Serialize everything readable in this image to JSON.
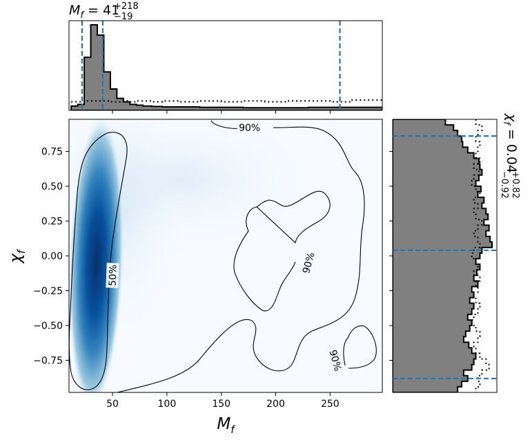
{
  "chart_data": [
    {
      "type": "heatmap",
      "xlabel_var": "M",
      "xlabel_sub": "f",
      "ylabel_var": "χ",
      "ylabel_sub": "f",
      "xlim": [
        10,
        298
      ],
      "ylim": [
        -0.98,
        0.98
      ],
      "x_ticks": [
        50,
        100,
        150,
        200,
        250
      ],
      "y_ticks": [
        -0.75,
        -0.5,
        -0.25,
        0.0,
        0.25,
        0.5,
        0.75
      ],
      "y_tick_labels": [
        "−0.75",
        "−0.50",
        "−0.25",
        "0.00",
        "0.25",
        "0.50",
        "0.75"
      ],
      "density_peak": {
        "x": 35,
        "y": 0.25
      },
      "contours": [
        {
          "label": "50%",
          "label_at": [
            50,
            -0.14
          ]
        },
        {
          "label": "90%",
          "label_at": [
            176,
            0.92
          ]
        },
        {
          "label": "90%",
          "label_at": [
            230,
            -0.05
          ]
        },
        {
          "label": "90%",
          "label_at": [
            255,
            -0.75
          ]
        }
      ],
      "colors": {
        "density": "#08306b",
        "contour": "#000000"
      }
    },
    {
      "type": "histogram",
      "variable": "M_f",
      "title_main": "M",
      "title_sub": "f",
      "title_value": " = 41",
      "title_plus": "+218",
      "title_minus": "−19",
      "median": 41,
      "interval": [
        22,
        259
      ],
      "bins_x": [
        12,
        18,
        24,
        30,
        36,
        42,
        48,
        54,
        60,
        66,
        72,
        78,
        86,
        96,
        110,
        130,
        150,
        170,
        190,
        210,
        230,
        250,
        270,
        298
      ],
      "posterior_density": [
        0.05,
        0.07,
        0.62,
        1.0,
        0.88,
        0.45,
        0.25,
        0.14,
        0.1,
        0.07,
        0.06,
        0.05,
        0.045,
        0.04,
        0.04,
        0.035,
        0.035,
        0.03,
        0.03,
        0.03,
        0.035,
        0.035,
        0.035
      ],
      "prior_density": [
        0.1,
        0.1,
        0.11,
        0.11,
        0.11,
        0.11,
        0.1,
        0.1,
        0.11,
        0.1,
        0.11,
        0.11,
        0.1,
        0.11,
        0.1,
        0.11,
        0.1,
        0.11,
        0.1,
        0.11,
        0.11,
        0.1,
        0.12
      ],
      "colors": {
        "fill": "#808080",
        "edge": "#000000",
        "interval": "#1f77b4"
      }
    },
    {
      "type": "histogram",
      "orientation": "horizontal",
      "variable": "chi_f",
      "title_main": "χ",
      "title_sub": "f",
      "title_value": " = 0.04",
      "title_plus": "+0.82",
      "title_minus": "−0.92",
      "median": 0.04,
      "interval": [
        -0.88,
        0.86
      ],
      "bins_y": [
        0.98,
        0.94,
        0.9,
        0.86,
        0.82,
        0.78,
        0.74,
        0.7,
        0.66,
        0.62,
        0.58,
        0.54,
        0.5,
        0.46,
        0.42,
        0.38,
        0.34,
        0.3,
        0.26,
        0.22,
        0.18,
        0.14,
        0.1,
        0.06,
        0.02,
        -0.02,
        -0.06,
        -0.1,
        -0.14,
        -0.18,
        -0.22,
        -0.26,
        -0.3,
        -0.34,
        -0.38,
        -0.42,
        -0.46,
        -0.5,
        -0.54,
        -0.58,
        -0.62,
        -0.66,
        -0.7,
        -0.74,
        -0.78,
        -0.82,
        -0.86,
        -0.9,
        -0.94,
        -0.98
      ],
      "posterior_density": [
        0.52,
        0.6,
        0.64,
        0.68,
        0.69,
        0.74,
        0.8,
        0.85,
        0.86,
        0.88,
        0.85,
        0.82,
        0.87,
        0.84,
        0.9,
        0.88,
        0.92,
        0.94,
        0.9,
        0.95,
        0.92,
        0.96,
        0.98,
        0.88,
        0.86,
        0.82,
        0.86,
        0.83,
        0.8,
        0.84,
        0.78,
        0.8,
        0.76,
        0.8,
        0.78,
        0.74,
        0.78,
        0.76,
        0.72,
        0.7,
        0.75,
        0.78,
        0.82,
        0.8,
        0.78,
        0.7,
        0.74,
        0.68,
        0.64
      ],
      "prior_density": [
        0.82,
        0.88,
        0.84,
        0.82,
        0.86,
        0.84,
        0.82,
        0.86,
        0.8,
        0.85,
        0.8,
        0.78,
        0.82,
        0.86,
        0.8,
        0.84,
        0.8,
        0.82,
        0.88,
        0.84,
        0.8,
        0.84,
        0.86,
        0.8,
        0.78,
        0.82,
        0.84,
        0.8,
        0.86,
        0.82,
        0.84,
        0.8,
        0.82,
        0.86,
        0.84,
        0.8,
        0.78,
        0.82,
        0.86,
        0.84,
        0.8,
        0.82,
        0.86,
        0.92,
        0.95,
        0.88,
        0.84,
        0.86,
        0.82
      ],
      "colors": {
        "fill": "#808080",
        "edge": "#000000",
        "interval": "#1f77b4"
      }
    }
  ]
}
